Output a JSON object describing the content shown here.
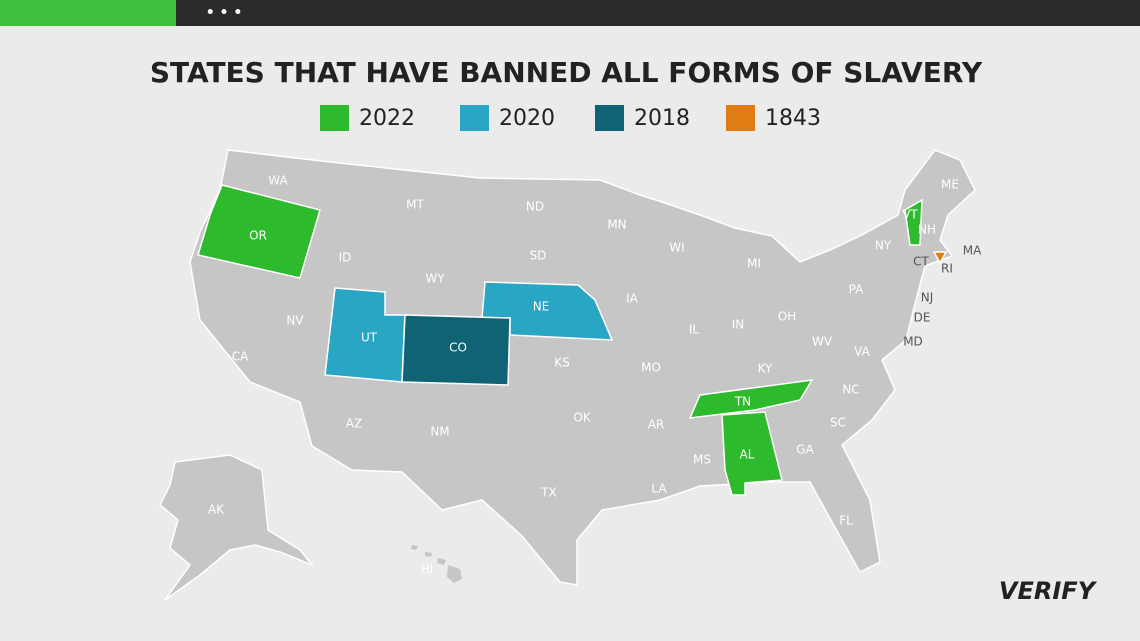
{
  "header": {
    "menu": "• • •"
  },
  "title": "STATES THAT HAVE BANNED ALL FORMS OF SLAVERY",
  "legend": [
    {
      "label": "2022",
      "color": "#2dbb2d"
    },
    {
      "label": "2020",
      "color": "#29a6c4"
    },
    {
      "label": "2018",
      "color": "#0f6374"
    },
    {
      "label": "1843",
      "color": "#e07c14"
    }
  ],
  "map": {
    "land_color": "#c6c6c6",
    "states": [
      {
        "label": "WA"
      },
      {
        "label": "MT"
      },
      {
        "label": "ND"
      },
      {
        "label": "MN"
      },
      {
        "label": "ME"
      },
      {
        "label": "VT",
        "color": "#2dbb2d"
      },
      {
        "label": "NH"
      },
      {
        "label": "OR",
        "color": "#2dbb2d"
      },
      {
        "label": "ID"
      },
      {
        "label": "WY"
      },
      {
        "label": "SD"
      },
      {
        "label": "WI"
      },
      {
        "label": "MI"
      },
      {
        "label": "NY"
      },
      {
        "label": "MA"
      },
      {
        "label": "CT"
      },
      {
        "label": "RI",
        "color": "#e07c14"
      },
      {
        "label": "IA"
      },
      {
        "label": "NE",
        "color": "#29a6c4"
      },
      {
        "label": "PA"
      },
      {
        "label": "NJ"
      },
      {
        "label": "NV"
      },
      {
        "label": "UT",
        "color": "#29a6c4"
      },
      {
        "label": "CO",
        "color": "#0f6374"
      },
      {
        "label": "IL"
      },
      {
        "label": "IN"
      },
      {
        "label": "OH"
      },
      {
        "label": "DE"
      },
      {
        "label": "MD"
      },
      {
        "label": "CA"
      },
      {
        "label": "KS"
      },
      {
        "label": "MO"
      },
      {
        "label": "KY"
      },
      {
        "label": "WV"
      },
      {
        "label": "VA"
      },
      {
        "label": "TN",
        "color": "#2dbb2d"
      },
      {
        "label": "NC"
      },
      {
        "label": "AZ"
      },
      {
        "label": "NM"
      },
      {
        "label": "OK"
      },
      {
        "label": "AR"
      },
      {
        "label": "SC"
      },
      {
        "label": "GA"
      },
      {
        "label": "AL",
        "color": "#2dbb2d"
      },
      {
        "label": "MS"
      },
      {
        "label": "LA"
      },
      {
        "label": "TX"
      },
      {
        "label": "FL"
      },
      {
        "label": "AK"
      },
      {
        "label": "HI"
      }
    ]
  },
  "logo": "VERIFY"
}
